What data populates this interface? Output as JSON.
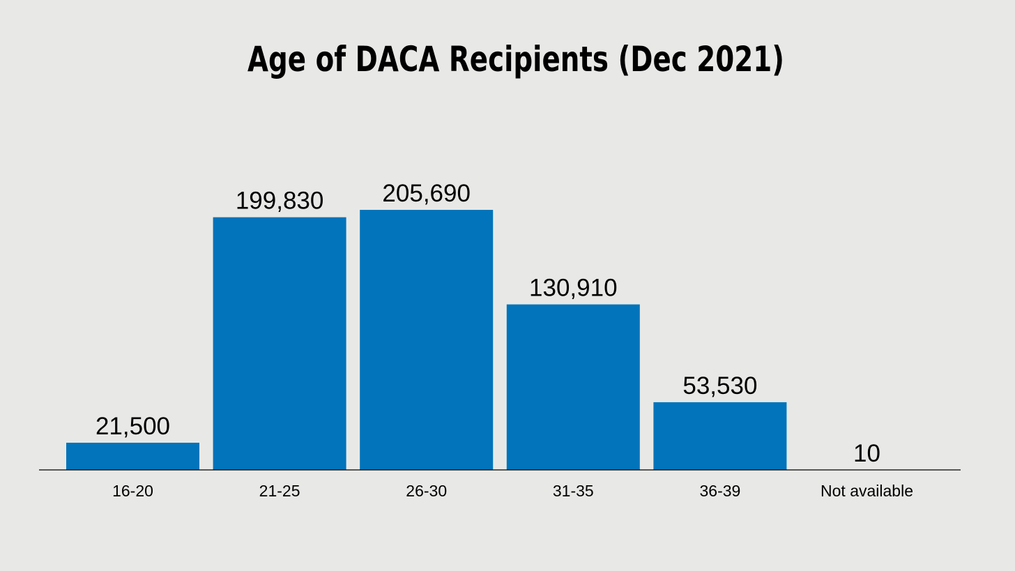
{
  "chart_data": {
    "type": "bar",
    "title": "Age of DACA Recipients (Dec 2021)",
    "xlabel": "",
    "ylabel": "",
    "categories": [
      "16-20",
      "21-25",
      "26-30",
      "31-35",
      "36-39",
      "Not available"
    ],
    "values": [
      21500,
      199830,
      205690,
      130910,
      53530,
      10
    ],
    "value_labels": [
      "21,500",
      "199,830",
      "205,690",
      "130,910",
      "53,530",
      "10"
    ],
    "ylim": [
      0,
      205690
    ],
    "grid": false,
    "legend": "none",
    "bar_color": "#0174bb",
    "axis_color": "#000000",
    "background": "#e8e9e6"
  }
}
